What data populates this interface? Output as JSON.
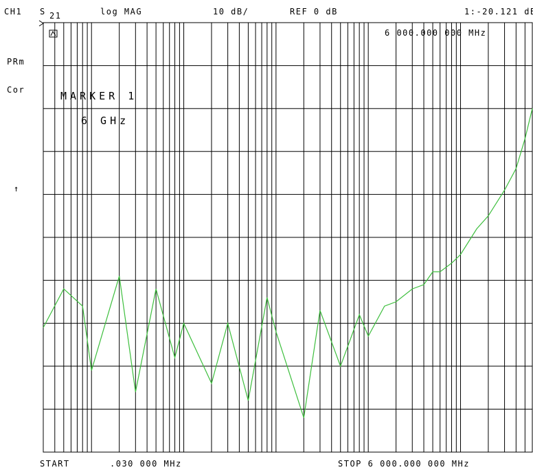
{
  "header": {
    "channel": "CH1",
    "param": "S",
    "param_sub": "21",
    "format": "log MAG",
    "scale": "10 dB/",
    "reference": "REF 0 dB",
    "marker_readout": "1:-20.121 dB",
    "marker_freq": "6 000.000 000 MHz"
  },
  "side": {
    "prm": "PRm",
    "cor": "Cor",
    "arrow": "↑"
  },
  "marker_note": {
    "line1": "MARKER 1",
    "line2": "6 GHz"
  },
  "footer": {
    "start": "START",
    "start_value": ".030 000 MHz",
    "stop": "STOP 6 000.000 000 MHz"
  },
  "colors": {
    "trace": "#3cbe3c",
    "grid": "#000000",
    "background": "#ffffff"
  },
  "chart_data": {
    "type": "line",
    "x_scale": "log",
    "x_unit": "MHz",
    "y_unit": "dB",
    "xlim": [
      0.03,
      6000
    ],
    "ylim": [
      -100,
      0
    ],
    "grid": true,
    "series": [
      {
        "x": [
          0.03,
          0.05,
          0.08,
          0.1,
          0.2,
          0.3,
          0.5,
          0.8,
          1,
          2,
          3,
          5,
          8,
          10,
          20,
          30,
          50,
          80,
          100,
          150,
          200,
          300,
          400,
          500,
          600,
          800,
          1000,
          1500,
          2000,
          3000,
          4000,
          5000,
          6000
        ],
        "y": [
          -71,
          -62,
          -66,
          -81,
          -59,
          -86,
          -62,
          -78,
          -70,
          -84,
          -70,
          -88,
          -64,
          -72,
          -92,
          -67,
          -80,
          -68,
          -73,
          -66,
          -65,
          -62,
          -61,
          -58,
          -58,
          -56,
          -54,
          -48,
          -45,
          -39,
          -34,
          -27,
          -20
        ]
      }
    ]
  }
}
